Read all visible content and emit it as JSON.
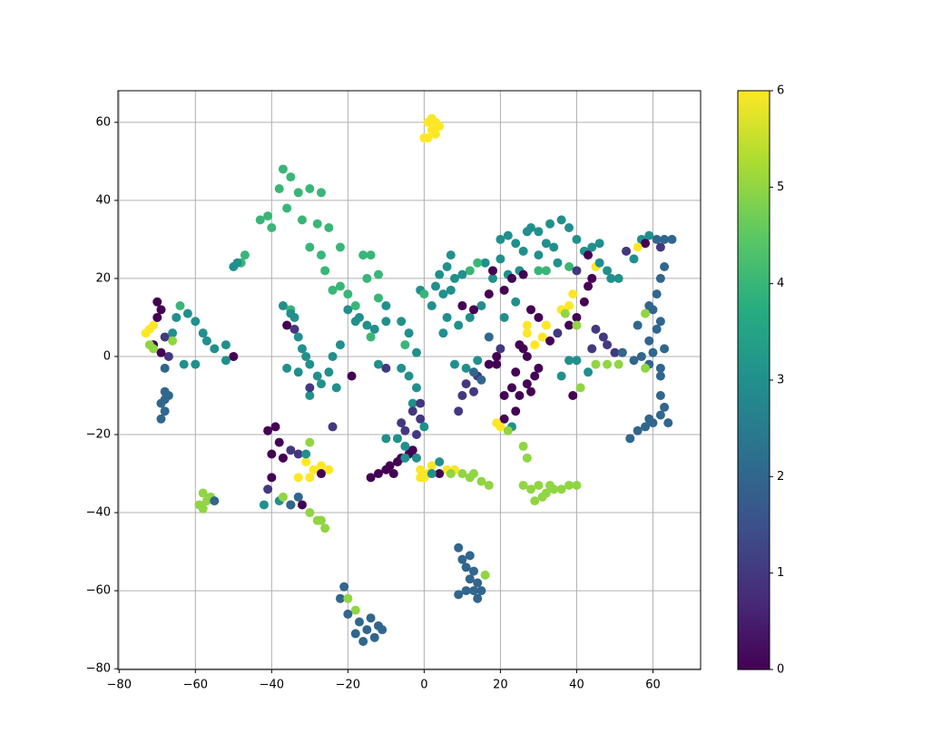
{
  "chart_data": {
    "type": "scatter",
    "xlim": [
      -80.3,
      72.5
    ],
    "ylim": [
      -80.2,
      68.1
    ],
    "xticks": [
      {
        "value": -80,
        "label": "−80"
      },
      {
        "value": -60,
        "label": "−60"
      },
      {
        "value": -40,
        "label": "−40"
      },
      {
        "value": -20,
        "label": "−20"
      },
      0,
      20,
      40,
      60
    ],
    "yticks": [
      {
        "value": -80,
        "label": "−80"
      },
      {
        "value": -60,
        "label": "−60"
      },
      {
        "value": -40,
        "label": "−40"
      },
      {
        "value": -20,
        "label": "−20"
      },
      0,
      20,
      40,
      60
    ],
    "grid": true,
    "colormap": [
      "#440154",
      "#472c7a",
      "#3b518b",
      "#2c718e",
      "#21908d",
      "#27ad81",
      "#5cc863",
      "#aadc32",
      "#fde725"
    ],
    "clim": [
      0,
      6
    ],
    "cticks": [
      0,
      1,
      2,
      3,
      4,
      5,
      6
    ],
    "x": [
      1,
      2,
      3,
      1,
      3,
      2,
      0,
      4,
      -37,
      -35,
      -38,
      -33,
      -30,
      -27,
      -41,
      -43,
      -40,
      -36,
      -32,
      -28,
      -25,
      -30,
      -27,
      -22,
      -26,
      -22,
      -20,
      -24,
      -15,
      -12,
      -16,
      -14,
      -47,
      -48,
      -49,
      -50,
      -72,
      -73,
      -71,
      -70,
      -69,
      -70,
      -71,
      -68,
      -67,
      -69,
      -65,
      -62,
      -60,
      -58,
      -57,
      -55,
      -52,
      -60,
      -63,
      -66,
      -68,
      -71,
      -72,
      -66,
      -64,
      -50,
      -52,
      -68,
      -69,
      -68,
      -69,
      -67,
      -68,
      -58,
      -57,
      -59,
      -58,
      -56,
      -55,
      -37,
      -35,
      -34,
      -36,
      -33,
      -32,
      -30,
      -33,
      -28,
      -25,
      -24,
      -22,
      -23,
      -30,
      -27,
      -36,
      -34,
      -30,
      -35,
      -31,
      -20,
      -17,
      -15,
      -13,
      -18,
      -10,
      -6,
      -4,
      -2,
      -12,
      -6,
      -4,
      -2,
      -3,
      -18,
      -12,
      -10,
      -14,
      -10,
      -19,
      -5,
      -3,
      -1,
      -6,
      -5,
      0,
      -2,
      -1,
      -41,
      -39,
      -38,
      -40,
      -37,
      -35,
      -33,
      -30,
      -31,
      -29,
      -27,
      -25,
      -30,
      -33,
      -27,
      -31,
      -24,
      -40,
      -41,
      -38,
      -35,
      -32,
      -33,
      -30,
      -28,
      -26,
      -27,
      -42,
      -37,
      -35,
      -21,
      -22,
      -20,
      -18,
      -17,
      -15,
      -16,
      -13,
      -11,
      -18,
      -14,
      -12,
      -20,
      9,
      10,
      11,
      12,
      13,
      14,
      11,
      15,
      13,
      9,
      12,
      16,
      14,
      -14,
      -12,
      -10,
      -9,
      -7,
      -6,
      -8,
      -4,
      -3,
      -5,
      -2,
      -1,
      0,
      1,
      -1,
      2,
      4,
      6,
      8,
      7,
      10,
      12,
      15,
      17,
      13,
      4,
      -10,
      -7,
      -5,
      2,
      5,
      7,
      3,
      -1,
      0,
      6,
      7,
      4,
      2,
      6,
      9,
      5,
      12,
      15,
      10,
      13,
      17,
      21,
      18,
      21,
      8,
      11,
      14,
      19,
      17,
      14,
      11,
      10,
      9,
      13,
      19,
      21,
      21,
      23,
      24,
      20,
      19,
      22,
      26,
      27,
      17,
      13,
      15,
      20,
      20,
      22,
      24,
      26,
      28,
      30,
      32,
      34,
      36,
      38,
      40,
      42,
      44,
      46,
      35,
      30,
      25,
      22,
      20,
      18,
      23,
      26,
      24,
      30,
      32,
      38,
      40,
      43,
      45,
      16,
      14,
      12,
      10,
      8,
      27,
      33,
      28,
      30,
      32,
      27,
      27,
      29,
      31,
      26,
      25,
      27,
      24,
      23,
      27,
      29,
      30,
      28,
      25,
      33,
      35,
      38,
      40,
      42,
      43,
      44,
      36,
      38,
      39,
      37,
      40,
      45,
      47,
      48,
      44,
      50,
      52,
      38,
      40,
      43,
      36,
      39,
      41,
      45,
      48,
      51,
      55,
      57,
      59,
      60,
      58,
      62,
      57,
      59,
      61,
      63,
      65,
      62,
      58,
      56,
      53,
      55,
      63,
      62,
      61,
      60,
      62,
      61,
      59,
      58,
      56,
      59,
      63,
      62,
      62,
      63,
      62,
      60,
      58,
      56,
      54,
      59,
      64,
      48,
      49,
      51,
      46,
      26,
      28,
      30,
      32,
      34,
      36,
      38,
      40,
      29,
      31,
      33
    ],
    "y": [
      56,
      58,
      60,
      60,
      57,
      61,
      56,
      59,
      48,
      46,
      43,
      42,
      43,
      42,
      36,
      35,
      33,
      38,
      35,
      34,
      33,
      28,
      26,
      28,
      22,
      18,
      16,
      17,
      20,
      21,
      26,
      26,
      26,
      24,
      24,
      23,
      7,
      6,
      8,
      14,
      12,
      10,
      3,
      5,
      0,
      1,
      10,
      11,
      9,
      6,
      4,
      2,
      3,
      -2,
      -2,
      6,
      -3,
      2,
      3,
      4,
      13,
      0,
      -1,
      -9,
      -12,
      -14,
      -16,
      -10,
      -11,
      -35,
      -37,
      -38,
      -39,
      -36,
      -37,
      13,
      12,
      10,
      8,
      5,
      2,
      -2,
      -4,
      -5,
      -4,
      0,
      3,
      -8,
      -10,
      -7,
      -3,
      7,
      -8,
      11,
      0,
      12,
      10,
      8,
      7,
      9,
      9,
      9,
      6,
      1,
      -2,
      -3,
      -5,
      -8,
      -12,
      13,
      15,
      13,
      5,
      -3,
      -5,
      3,
      -14,
      -16,
      -17,
      -19,
      -18,
      -20,
      -12,
      -19,
      -18,
      -22,
      -25,
      -26,
      -24,
      -25,
      -22,
      -27,
      -29,
      -28,
      -29,
      -31,
      -31,
      -30,
      -25,
      -18,
      -31,
      -34,
      -37,
      -38,
      -38,
      -36,
      -40,
      -42,
      -44,
      -42,
      -38,
      -36,
      -38,
      -59,
      -62,
      -62,
      -65,
      -68,
      -70,
      -73,
      -72,
      -70,
      -71,
      -67,
      -69,
      -66,
      -49,
      -52,
      -54,
      -57,
      -60,
      -62,
      -60,
      -60,
      -55,
      -61,
      -51,
      -56,
      -58,
      -31,
      -30,
      -29,
      -28,
      -27,
      -26,
      -30,
      -25,
      -24,
      -26,
      -26,
      -29,
      -31,
      -30,
      -31,
      -28,
      -27,
      -29,
      -29,
      -30,
      -30,
      -31,
      -32,
      -33,
      -30,
      -30,
      -21,
      -21,
      -23,
      -30,
      16,
      17,
      18,
      17,
      16,
      23,
      26,
      21,
      13,
      10,
      8,
      6,
      10,
      13,
      13,
      12,
      16,
      17,
      20,
      10,
      -2,
      -3,
      -1,
      0,
      -2,
      -5,
      -7,
      -10,
      -14,
      -9,
      -2,
      -10,
      -16,
      -18,
      -14,
      -18,
      -17,
      -19,
      -23,
      -26,
      5,
      -4,
      -6,
      2,
      30,
      31,
      29,
      27,
      33,
      32,
      29,
      28,
      35,
      33,
      30,
      27,
      28,
      29,
      24,
      26,
      22,
      21,
      25,
      22,
      20,
      21,
      14,
      22,
      22,
      23,
      22,
      26,
      23,
      24,
      24,
      22,
      21,
      20,
      32,
      34,
      12,
      10,
      8,
      8,
      6,
      3,
      5,
      2,
      3,
      0,
      -4,
      -8,
      -7,
      -5,
      -3,
      -9,
      -10,
      4,
      6,
      8,
      10,
      14,
      18,
      20,
      12,
      13,
      16,
      11,
      8,
      7,
      5,
      3,
      2,
      1,
      1,
      -1,
      -1,
      -4,
      -5,
      -10,
      -8,
      -2,
      -2,
      -2,
      -1,
      0,
      -2,
      1,
      -3,
      -5,
      30,
      31,
      30,
      30,
      30,
      28,
      29,
      28,
      27,
      25,
      23,
      20,
      16,
      12,
      9,
      7,
      13,
      11,
      8,
      4,
      2,
      -3,
      -10,
      -13,
      -15,
      -17,
      -18,
      -19,
      -21,
      -16,
      -17,
      22,
      20,
      20,
      24,
      -33,
      -34,
      -33,
      -35,
      -34,
      -34,
      -33,
      -33,
      -37,
      -36,
      -33
    ],
    "values": [
      6,
      6,
      6,
      6,
      6,
      6,
      6,
      6,
      4,
      4,
      4,
      4,
      4,
      4,
      4,
      4,
      4,
      4,
      4,
      4,
      4,
      4,
      4,
      4,
      4,
      4,
      4,
      4,
      4,
      4,
      4,
      4,
      4,
      4,
      3,
      3,
      6,
      6,
      6,
      0,
      0,
      0,
      0,
      1,
      1,
      0,
      3,
      3,
      3,
      3,
      3,
      3,
      3,
      3,
      3,
      3,
      2,
      5,
      5,
      5,
      4,
      0,
      3,
      2,
      2,
      2,
      2,
      2,
      2,
      5,
      5,
      5,
      5,
      5,
      2,
      3,
      4,
      3,
      0,
      3,
      3,
      3,
      3,
      3,
      3,
      3,
      3,
      3,
      3,
      3,
      3,
      1,
      1,
      3,
      3,
      3,
      3,
      3,
      3,
      3,
      3,
      3,
      3,
      3,
      3,
      3,
      3,
      3,
      3,
      4,
      4,
      3,
      4,
      1,
      0,
      4,
      1,
      1,
      1,
      1,
      3,
      1,
      1,
      0,
      0,
      0,
      0,
      0,
      1,
      1,
      5,
      6,
      6,
      6,
      6,
      6,
      6,
      0,
      3,
      1,
      0,
      1,
      3,
      1,
      0,
      2,
      5,
      5,
      5,
      5,
      3,
      5,
      2,
      2,
      2,
      5,
      5,
      2,
      2,
      2,
      2,
      2,
      2,
      2,
      2,
      2,
      2,
      2,
      2,
      2,
      2,
      2,
      2,
      2,
      2,
      2,
      2,
      5,
      2,
      0,
      0,
      0,
      0,
      0,
      0,
      0,
      0,
      0,
      3,
      3,
      6,
      6,
      6,
      6,
      6,
      3,
      6,
      6,
      5,
      5,
      5,
      5,
      5,
      5,
      0,
      3,
      3,
      3,
      3,
      3,
      3,
      3,
      3,
      4,
      3,
      3,
      3,
      3,
      3,
      3,
      3,
      3,
      3,
      0,
      0,
      0,
      0,
      3,
      3,
      3,
      3,
      3,
      0,
      0,
      1,
      1,
      1,
      1,
      1,
      0,
      0,
      0,
      3,
      0,
      6,
      6,
      5,
      5,
      5,
      2,
      2,
      2,
      1,
      3,
      3,
      3,
      3,
      3,
      3,
      3,
      3,
      3,
      3,
      3,
      3,
      3,
      3,
      3,
      3,
      3,
      3,
      3,
      0,
      0,
      0,
      3,
      4,
      4,
      4,
      1,
      0,
      6,
      3,
      4,
      4,
      3,
      3,
      3,
      3,
      0,
      0,
      6,
      6,
      6,
      6,
      6,
      0,
      0,
      0,
      0,
      0,
      0,
      0,
      0,
      0,
      0,
      0,
      1,
      0,
      0,
      0,
      0,
      0,
      6,
      6,
      6,
      5,
      5,
      1,
      1,
      1,
      1,
      1,
      2,
      3,
      3,
      3,
      3,
      0,
      5,
      5,
      5,
      5,
      2,
      2,
      2,
      2,
      5,
      2,
      3,
      3,
      2,
      2,
      2,
      1,
      0,
      6,
      1,
      3,
      2,
      2,
      2,
      2,
      2,
      2,
      2,
      5,
      2,
      2,
      2,
      2,
      2,
      2,
      2,
      2,
      2,
      2,
      2,
      2,
      2,
      3,
      3,
      3,
      3,
      5,
      5,
      5,
      5,
      5,
      5,
      5,
      5,
      5,
      5,
      5
    ]
  }
}
